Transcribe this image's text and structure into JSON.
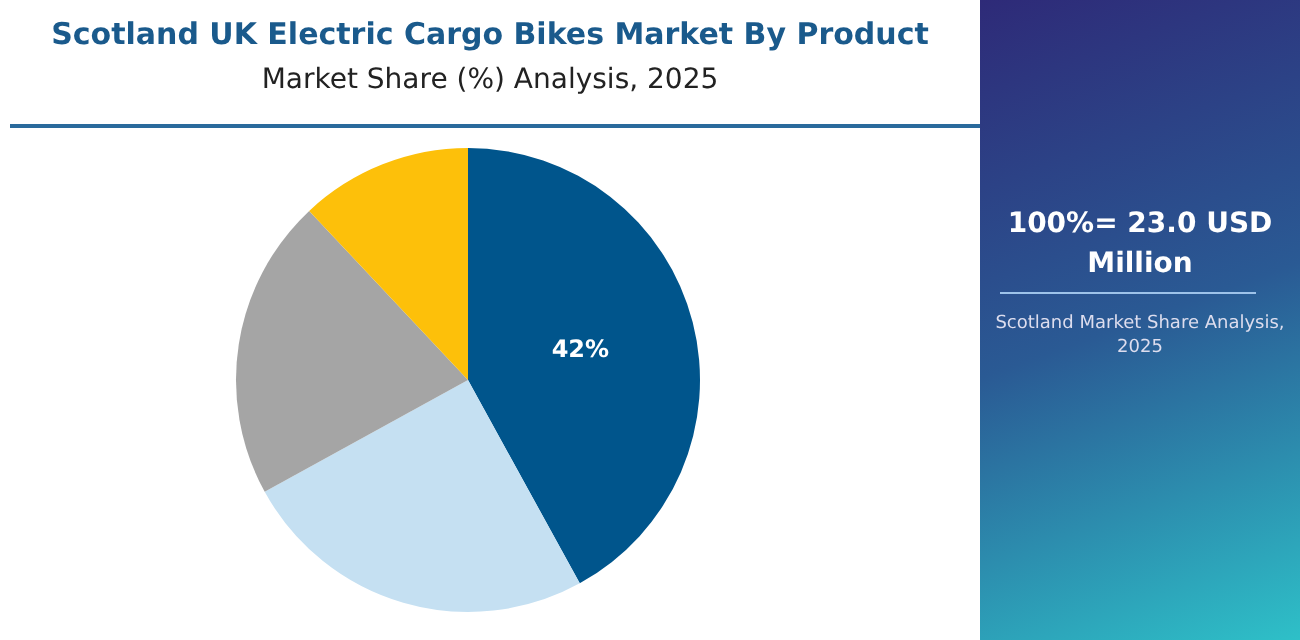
{
  "chart_data": {
    "type": "pie",
    "title": "Scotland UK Electric Cargo Bikes Market By Product",
    "subtitle": "Market Share (%) Analysis, 2025",
    "categories": [
      null,
      null,
      null,
      null
    ],
    "values": [
      42,
      25,
      21,
      12
    ],
    "colors": [
      "#00558c",
      "#c5e0f2",
      "#a5a5a5",
      "#fdc00a"
    ],
    "value_labels": [
      "42%",
      null,
      null,
      null
    ],
    "legend": false,
    "annotations": [
      "100%= 23.0 USD Million",
      "Scotland Market Share Analysis, 2025"
    ]
  }
}
